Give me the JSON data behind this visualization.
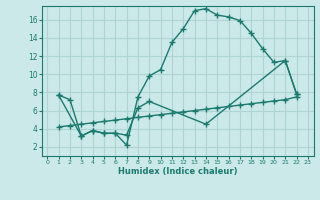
{
  "xlabel": "Humidex (Indice chaleur)",
  "bg_color": "#cce9e9",
  "grid_color": "#aed4d4",
  "line_color": "#1a7a6e",
  "xlim": [
    -0.5,
    23.5
  ],
  "ylim": [
    1,
    17.5
  ],
  "xticks": [
    0,
    1,
    2,
    3,
    4,
    5,
    6,
    7,
    8,
    9,
    10,
    11,
    12,
    13,
    14,
    15,
    16,
    17,
    18,
    19,
    20,
    21,
    22,
    23
  ],
  "yticks": [
    2,
    4,
    6,
    8,
    10,
    12,
    14,
    16
  ],
  "line1_x": [
    1,
    2,
    3,
    4,
    5,
    6,
    7,
    8,
    9,
    10,
    11,
    12,
    13,
    14,
    15,
    16,
    17,
    18,
    19,
    20,
    21,
    22
  ],
  "line1_y": [
    7.7,
    7.2,
    3.2,
    3.8,
    3.5,
    3.5,
    2.2,
    7.5,
    9.8,
    10.5,
    13.5,
    15.0,
    17.0,
    17.2,
    16.5,
    16.3,
    15.9,
    14.5,
    12.8,
    11.3,
    11.5,
    7.8
  ],
  "line2_x": [
    1,
    3,
    4,
    5,
    6,
    7,
    8,
    9,
    14,
    21,
    22
  ],
  "line2_y": [
    7.7,
    3.2,
    3.8,
    3.5,
    3.5,
    3.3,
    6.3,
    7.0,
    4.5,
    11.5,
    7.8
  ],
  "line3_x": [
    1,
    2,
    3,
    4,
    5,
    6,
    7,
    8,
    9,
    10,
    11,
    12,
    13,
    14,
    15,
    16,
    17,
    18,
    19,
    20,
    21,
    22
  ],
  "line3_y": [
    4.2,
    4.35,
    4.5,
    4.65,
    4.8,
    4.95,
    5.1,
    5.25,
    5.4,
    5.55,
    5.7,
    5.85,
    6.0,
    6.15,
    6.3,
    6.45,
    6.6,
    6.75,
    6.9,
    7.05,
    7.2,
    7.5
  ]
}
